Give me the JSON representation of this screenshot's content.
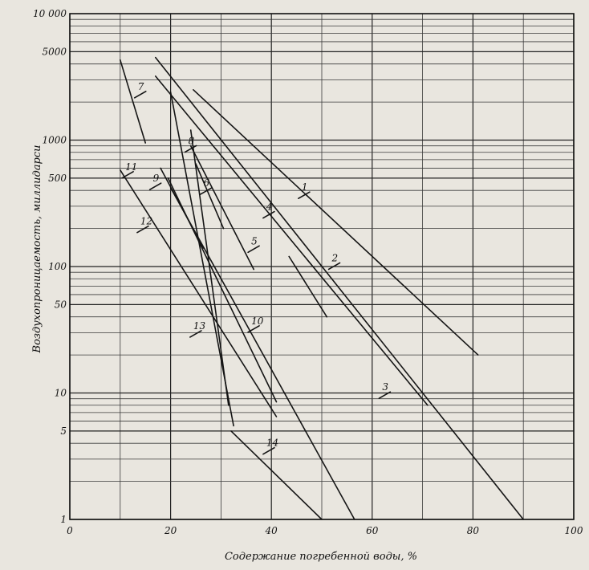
{
  "chart_data": {
    "type": "line",
    "xlabel": "Содержание погребенной воды, %",
    "ylabel": "Воздухопроницаемость, миллидарси",
    "xlim": [
      0,
      100
    ],
    "ylim": [
      1,
      10000
    ],
    "y_scale": "log",
    "grid": true,
    "x_ticks": [
      "0",
      "20",
      "40",
      "60",
      "80",
      "100"
    ],
    "y_ticks": [
      {
        "value": 1,
        "label": "1"
      },
      {
        "value": 5,
        "label": "5"
      },
      {
        "value": 10,
        "label": "10"
      },
      {
        "value": 50,
        "label": "50"
      },
      {
        "value": 100,
        "label": "100"
      },
      {
        "value": 500,
        "label": "500"
      },
      {
        "value": 1000,
        "label": "1000"
      },
      {
        "value": 5000,
        "label": "5000"
      },
      {
        "value": 10000,
        "label": "10 000"
      }
    ],
    "series": [
      {
        "name": "1",
        "points": [
          [
            24.5,
            2500
          ],
          [
            81,
            20
          ]
        ],
        "label_at": [
          46,
          400
        ]
      },
      {
        "name": "2",
        "points": [
          [
            17,
            4500
          ],
          [
            90,
            1
          ]
        ],
        "label_at": [
          52,
          110
        ]
      },
      {
        "name": "3",
        "points": [
          [
            43.5,
            120
          ],
          [
            51,
            40
          ]
        ],
        "label_at": [
          62,
          10.5
        ]
      },
      {
        "name": "4",
        "points": [
          [
            17,
            3200
          ],
          [
            71,
            8
          ]
        ],
        "label_at": [
          39,
          280
        ]
      },
      {
        "name": "5",
        "points": [
          [
            24,
            900
          ],
          [
            36.5,
            95
          ]
        ],
        "label_at": [
          36,
          150
        ]
      },
      {
        "name": "6",
        "points": [
          [
            25,
            650
          ],
          [
            30.5,
            200
          ]
        ],
        "label_at": [
          26.5,
          430
        ]
      },
      {
        "name": "7",
        "points": [
          [
            10,
            4300
          ],
          [
            15,
            950
          ]
        ],
        "label_at": [
          13.5,
          2500
        ]
      },
      {
        "name": "8",
        "points": [
          [
            24,
            1200
          ],
          [
            31.5,
            8
          ]
        ],
        "label_at": [
          23.5,
          930
        ]
      },
      {
        "name": "9",
        "points": [
          [
            18,
            600
          ],
          [
            26.5,
            140
          ]
        ],
        "label_at": [
          16.5,
          470
        ]
      },
      {
        "name": "10",
        "points": [
          [
            19.5,
            500
          ],
          [
            41,
            8.5
          ]
        ],
        "label_at": [
          36,
          35
        ]
      },
      {
        "name": "11",
        "points": [
          [
            10,
            580
          ],
          [
            41,
            6.5
          ]
        ],
        "label_at": [
          11,
          580
        ]
      },
      {
        "name": "12",
        "points": [
          [
            20,
            2400
          ],
          [
            32.5,
            5.5
          ]
        ],
        "label_at": [
          14,
          215
        ]
      },
      {
        "name": "13",
        "points": [
          [
            20,
            420
          ],
          [
            56.5,
            1
          ]
        ],
        "label_at": [
          24.5,
          32
        ]
      },
      {
        "name": "14",
        "points": [
          [
            32,
            5
          ],
          [
            50,
            1
          ]
        ],
        "label_at": [
          39,
          3.8
        ]
      }
    ]
  }
}
